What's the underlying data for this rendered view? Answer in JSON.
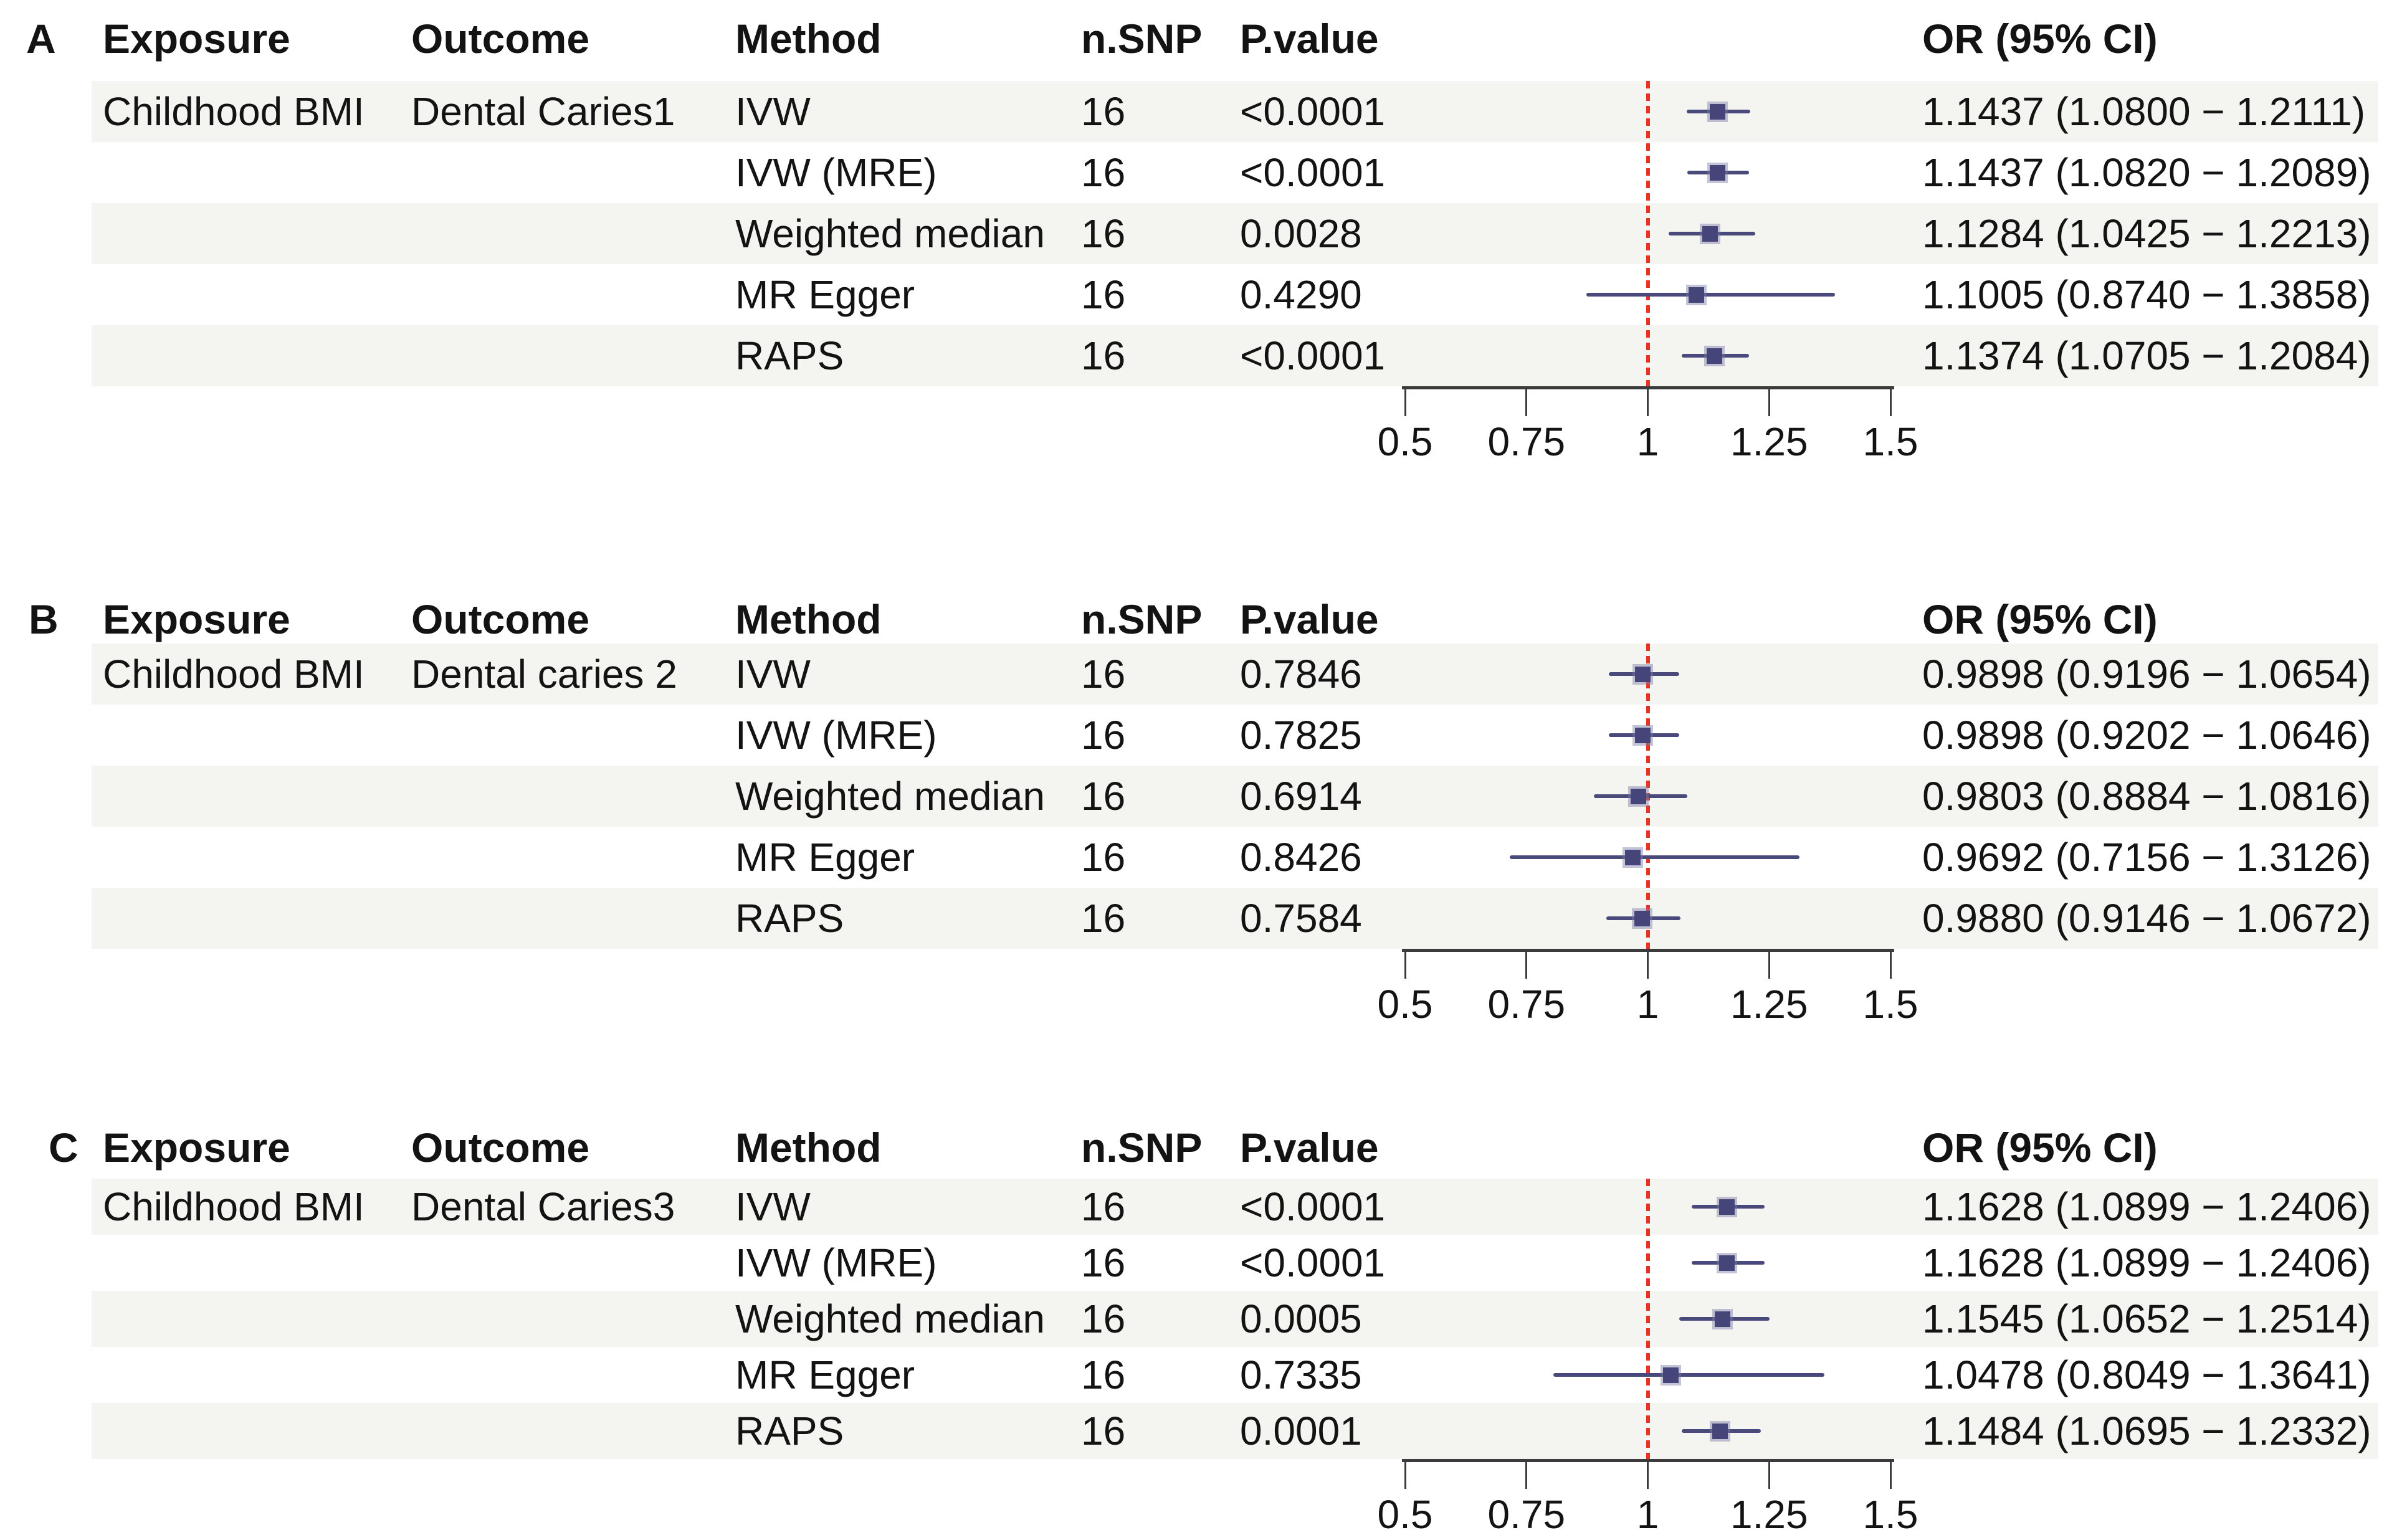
{
  "colors": {
    "marker": "#46457a",
    "ci_line": "#4a497b",
    "ref_line": "#e63323",
    "row_stripe": "#f4f4f0",
    "axis": "#3b3b3b",
    "text": "#131313"
  },
  "chart_data": [
    {
      "type": "scatter",
      "chart_kind": "forest-plot",
      "title": "A",
      "columns": [
        "Exposure",
        "Outcome",
        "Method",
        "n.SNP",
        "P.value",
        "OR (95% CI)"
      ],
      "exposure": "Childhood BMI",
      "outcome": "Dental Caries1",
      "methods": [
        "IVW",
        "IVW (MRE)",
        "Weighted median",
        "MR Egger",
        "RAPS"
      ],
      "n_snp": [
        "16",
        "16",
        "16",
        "16",
        "16"
      ],
      "p_values": [
        "<0.0001",
        "<0.0001",
        "0.0028",
        "0.4290",
        "<0.0001"
      ],
      "or": [
        1.1437,
        1.1437,
        1.1284,
        1.1005,
        1.1374
      ],
      "ci_low": [
        1.08,
        1.082,
        1.0425,
        0.874,
        1.0705
      ],
      "ci_high": [
        1.2111,
        1.2089,
        1.2213,
        1.3858,
        1.2084
      ],
      "or_ci_labels": [
        "1.1437 (1.0800 − 1.2111)",
        "1.1437 (1.0820 − 1.2089)",
        "1.1284 (1.0425 − 1.2213)",
        "1.1005 (0.8740 − 1.3858)",
        "1.1374 (1.0705 − 1.2084)"
      ],
      "xlim": [
        0.5,
        1.5
      ],
      "ref_line": 1,
      "x_ticks": [
        0.5,
        0.75,
        1,
        1.25,
        1.5
      ],
      "x_tick_labels": [
        "0.5",
        "0.75",
        "1",
        "1.25",
        "1.5"
      ],
      "grid": false,
      "legend": false
    },
    {
      "type": "scatter",
      "chart_kind": "forest-plot",
      "title": "B",
      "columns": [
        "Exposure",
        "Outcome",
        "Method",
        "n.SNP",
        "P.value",
        "OR (95% CI)"
      ],
      "exposure": "Childhood BMI",
      "outcome": "Dental caries 2",
      "methods": [
        "IVW",
        "IVW (MRE)",
        "Weighted median",
        "MR Egger",
        "RAPS"
      ],
      "n_snp": [
        "16",
        "16",
        "16",
        "16",
        "16"
      ],
      "p_values": [
        "0.7846",
        "0.7825",
        "0.6914",
        "0.8426",
        "0.7584"
      ],
      "or": [
        0.9898,
        0.9898,
        0.9803,
        0.9692,
        0.988
      ],
      "ci_low": [
        0.9196,
        0.9202,
        0.8884,
        0.7156,
        0.9146
      ],
      "ci_high": [
        1.0654,
        1.0646,
        1.0816,
        1.3126,
        1.0672
      ],
      "or_ci_labels": [
        "0.9898 (0.9196 − 1.0654)",
        "0.9898 (0.9202 − 1.0646)",
        "0.9803 (0.8884 − 1.0816)",
        "0.9692 (0.7156 − 1.3126)",
        "0.9880 (0.9146 − 1.0672)"
      ],
      "xlim": [
        0.5,
        1.5
      ],
      "ref_line": 1,
      "x_ticks": [
        0.5,
        0.75,
        1,
        1.25,
        1.5
      ],
      "x_tick_labels": [
        "0.5",
        "0.75",
        "1",
        "1.25",
        "1.5"
      ],
      "grid": false,
      "legend": false
    },
    {
      "type": "scatter",
      "chart_kind": "forest-plot",
      "title": "C",
      "columns": [
        "Exposure",
        "Outcome",
        "Method",
        "n.SNP",
        "P.value",
        "OR (95% CI)"
      ],
      "exposure": "Childhood BMI",
      "outcome": "Dental Caries3",
      "methods": [
        "IVW",
        "IVW (MRE)",
        "Weighted median",
        "MR Egger",
        "RAPS"
      ],
      "n_snp": [
        "16",
        "16",
        "16",
        "16",
        "16"
      ],
      "p_values": [
        "<0.0001",
        "<0.0001",
        "0.0005",
        "0.7335",
        "0.0001"
      ],
      "or": [
        1.1628,
        1.1628,
        1.1545,
        1.0478,
        1.1484
      ],
      "ci_low": [
        1.0899,
        1.0899,
        1.0652,
        0.8049,
        1.0695
      ],
      "ci_high": [
        1.2406,
        1.2406,
        1.2514,
        1.3641,
        1.2332
      ],
      "or_ci_labels": [
        "1.1628 (1.0899 − 1.2406)",
        "1.1628 (1.0899 − 1.2406)",
        "1.1545 (1.0652 − 1.2514)",
        "1.0478 (0.8049 − 1.3641)",
        "1.1484 (1.0695 − 1.2332)"
      ],
      "xlim": [
        0.5,
        1.5
      ],
      "ref_line": 1,
      "x_ticks": [
        0.5,
        0.75,
        1,
        1.25,
        1.5
      ],
      "x_tick_labels": [
        "0.5",
        "0.75",
        "1",
        "1.25",
        "1.5"
      ],
      "grid": false,
      "legend": false
    }
  ]
}
